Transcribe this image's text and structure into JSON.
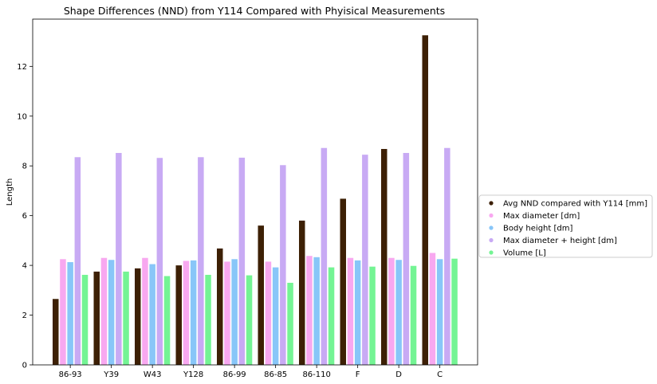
{
  "chart_data": {
    "type": "bar",
    "title": "Shape Differences (NND) from Y114 Compared with Phyisical Measurements",
    "xlabel": "",
    "ylabel": "Length",
    "ylim": [
      0,
      13.9
    ],
    "yticks": [
      0,
      2,
      4,
      6,
      8,
      10,
      12
    ],
    "categories": [
      "86-93",
      "Y39",
      "W43",
      "Y128",
      "86-99",
      "86-85",
      "86-110",
      "F",
      "D",
      "C"
    ],
    "series": [
      {
        "name": "Avg NND compared with Y114 [mm]",
        "color": "#3d2005",
        "values": [
          2.65,
          3.75,
          3.88,
          4.0,
          4.68,
          5.6,
          5.8,
          6.68,
          8.68,
          13.25
        ]
      },
      {
        "name": "Max diameter [dm]",
        "color": "#f8a8f0",
        "values": [
          4.25,
          4.3,
          4.3,
          4.18,
          4.15,
          4.15,
          4.38,
          4.3,
          4.3,
          4.5
        ]
      },
      {
        "name": "Body height [dm]",
        "color": "#88c6f8",
        "values": [
          4.13,
          4.22,
          4.05,
          4.2,
          4.25,
          3.92,
          4.33,
          4.2,
          4.22,
          4.25
        ]
      },
      {
        "name": "Max diameter + height [dm]",
        "color": "#c8aaf4",
        "values": [
          8.35,
          8.52,
          8.32,
          8.35,
          8.33,
          8.03,
          8.72,
          8.45,
          8.52,
          8.72
        ]
      },
      {
        "name": "Volume [L]",
        "color": "#74f494",
        "values": [
          3.62,
          3.75,
          3.57,
          3.62,
          3.6,
          3.3,
          3.92,
          3.95,
          3.98,
          4.27
        ]
      }
    ],
    "legend": {
      "placement": "right"
    },
    "grid": false
  }
}
